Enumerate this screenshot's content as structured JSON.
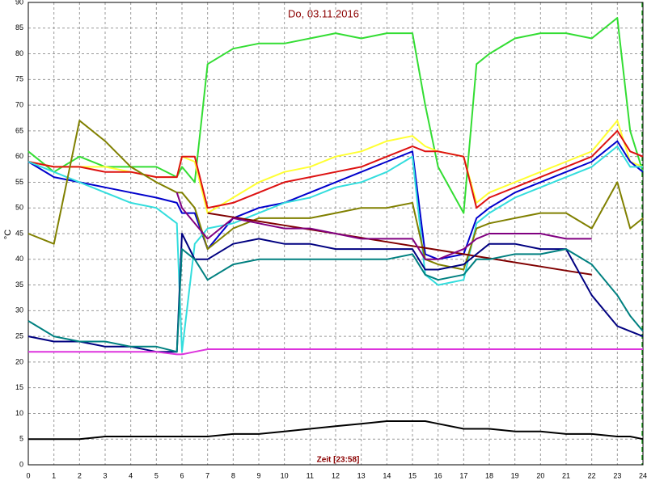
{
  "chart_data": {
    "type": "line",
    "title": "Do, 03.11.2016",
    "x_label": "Zeit [23:58]",
    "y_label": "°C",
    "x": [
      0,
      1,
      2,
      3,
      4,
      5,
      5.8,
      6,
      6.5,
      7,
      8,
      9,
      10,
      11,
      12,
      13,
      14,
      15,
      15.5,
      16,
      17,
      17.5,
      18,
      19,
      20,
      21,
      22,
      23,
      23.5,
      24
    ],
    "xlim": [
      0,
      24
    ],
    "xticks": [
      0,
      1,
      2,
      3,
      4,
      5,
      6,
      7,
      8,
      9,
      10,
      11,
      12,
      13,
      14,
      15,
      16,
      17,
      18,
      19,
      20,
      21,
      22,
      23,
      24
    ],
    "ylim": [
      0,
      90
    ],
    "yticks": [
      0,
      5,
      10,
      15,
      20,
      25,
      30,
      35,
      40,
      45,
      50,
      55,
      60,
      65,
      70,
      75,
      80,
      85,
      90
    ],
    "grid": true,
    "series": [
      {
        "color": "#33dd33",
        "values": [
          61,
          57,
          60,
          58,
          58,
          58,
          56,
          58,
          55,
          78,
          81,
          82,
          82,
          83,
          84,
          83,
          84,
          84,
          70,
          58,
          49,
          78,
          80,
          83,
          84,
          84,
          83,
          87,
          65,
          57
        ]
      },
      {
        "color": "#ffff33",
        "values": [
          59,
          58,
          58,
          58,
          57,
          56,
          56,
          60,
          59,
          49,
          52,
          55,
          57,
          58,
          60,
          61,
          63,
          64,
          62,
          61,
          60,
          51,
          53,
          55,
          57,
          59,
          61,
          67,
          59,
          58
        ]
      },
      {
        "color": "#dd1111",
        "values": [
          59,
          58,
          58,
          57,
          57,
          56,
          56,
          60,
          60,
          50,
          51,
          53,
          55,
          56,
          57,
          58,
          60,
          62,
          61,
          61,
          60,
          50,
          52,
          54,
          56,
          58,
          60,
          65,
          61,
          60
        ]
      },
      {
        "color": "#0000cc",
        "values": [
          59,
          56,
          55,
          54,
          53,
          52,
          51,
          49,
          49,
          42,
          48,
          50,
          51,
          53,
          55,
          57,
          59,
          61,
          41,
          40,
          41,
          48,
          50,
          53,
          55,
          57,
          59,
          63,
          59,
          57
        ]
      },
      {
        "color": "#33dddd",
        "values": [
          59,
          57,
          55,
          53,
          51,
          50,
          47,
          22,
          43,
          46,
          47,
          49,
          51,
          52,
          54,
          55,
          57,
          60,
          37,
          35,
          36,
          47,
          49,
          52,
          54,
          56,
          58,
          62,
          58,
          58
        ]
      },
      {
        "color": "#808000",
        "values": [
          45,
          43,
          67,
          63,
          58,
          55,
          53,
          53,
          50,
          42,
          46,
          48,
          48,
          48,
          49,
          50,
          50,
          51,
          40,
          39,
          38,
          46,
          47,
          48,
          49,
          49,
          46,
          55,
          46,
          48
        ]
      },
      {
        "color": "#800000",
        "values": [
          null,
          null,
          null,
          null,
          null,
          null,
          null,
          null,
          null,
          49,
          48.2,
          47.4,
          46.6,
          45.8,
          45,
          44.2,
          43.4,
          42.6,
          42.2,
          41.8,
          41,
          40.6,
          40.2,
          39.4,
          38.6,
          37.8,
          37,
          null,
          null,
          null
        ]
      },
      {
        "color": "#800080",
        "values": [
          null,
          null,
          null,
          null,
          null,
          null,
          53,
          50,
          47,
          44,
          48,
          47,
          46,
          46,
          45,
          44,
          44,
          44,
          40,
          40,
          42,
          44,
          45,
          45,
          45,
          44,
          44,
          null,
          null,
          null
        ]
      },
      {
        "color": "#000080",
        "values": [
          25,
          24,
          24,
          23,
          23,
          22,
          22,
          45,
          40,
          40,
          43,
          44,
          43,
          43,
          42,
          42,
          42,
          42,
          38,
          38,
          39,
          41,
          43,
          43,
          42,
          42,
          33,
          27,
          26,
          25
        ]
      },
      {
        "color": "#008080",
        "values": [
          28,
          25,
          24,
          24,
          23,
          23,
          22,
          42,
          40,
          36,
          39,
          40,
          40,
          40,
          40,
          40,
          40,
          41,
          37,
          36,
          37,
          40,
          40,
          41,
          41,
          42,
          39,
          33,
          29,
          26
        ]
      },
      {
        "color": "#dd33dd",
        "values": [
          22,
          22,
          22,
          22,
          22,
          22,
          21.5,
          21.5,
          22,
          22.5,
          22.5,
          22.5,
          22.5,
          22.5,
          22.5,
          22.5,
          22.5,
          22.5,
          22.5,
          22.5,
          22.5,
          22.5,
          22.5,
          22.5,
          22.5,
          22.5,
          22.5,
          22.5,
          22.5,
          22.5
        ]
      },
      {
        "color": "#000000",
        "values": [
          5,
          5,
          5,
          5.5,
          5.5,
          5.5,
          5.5,
          5.5,
          5.5,
          5.5,
          6,
          6,
          6.5,
          7,
          7.5,
          8,
          8.5,
          8.5,
          8.5,
          8,
          7,
          7,
          7,
          6.5,
          6.5,
          6,
          6,
          5.5,
          5.5,
          5
        ]
      }
    ]
  }
}
